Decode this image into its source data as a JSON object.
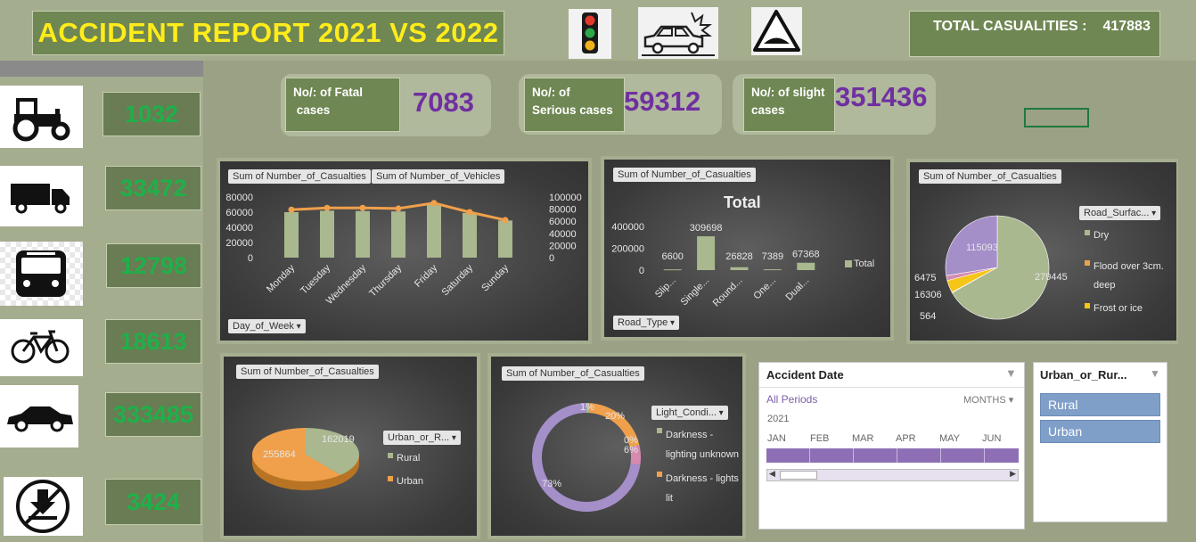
{
  "header": {
    "title": "ACCIDENT REPORT 2021 VS 2022",
    "total_label": "TOTAL CASUALITIES  :",
    "total_value": "417883",
    "icons": [
      "traffic-light-icon",
      "car-crash-icon",
      "speed-bump-sign-icon"
    ]
  },
  "vehicles": [
    {
      "icon": "tractor-icon",
      "value": "1032"
    },
    {
      "icon": "truck-icon",
      "value": "33472"
    },
    {
      "icon": "bus-icon",
      "value": "12798"
    },
    {
      "icon": "bicycle-icon",
      "value": "18613"
    },
    {
      "icon": "car-icon",
      "value": "333485"
    },
    {
      "icon": "no-unloading-sign-icon",
      "value": "3424"
    }
  ],
  "kpis": {
    "fatal": {
      "label_line1": "No/: of Fatal",
      "label_line2": " cases",
      "value": "7083"
    },
    "serious": {
      "label_line1": "No/: of",
      "label_line2": "Serious cases",
      "value": "59312"
    },
    "slight": {
      "label_line1": "No/: of slight",
      "label_line2": "cases",
      "value": "351436"
    }
  },
  "chart_data": [
    {
      "type": "bar",
      "field_buttons": [
        "Sum of Number_of_Casualties",
        "Sum of Number_of_Vehicles"
      ],
      "axis_button": "Day_of_Week",
      "categories": [
        "Monday",
        "Tuesday",
        "Wednesday",
        "Thursday",
        "Friday",
        "Saturday",
        "Sunday"
      ],
      "series": [
        {
          "name": "Sum of Number_of_Casualties",
          "kind": "bar",
          "axis": "left",
          "values": [
            60000,
            62000,
            61500,
            61000,
            70000,
            59000,
            49000
          ]
        },
        {
          "name": "Sum of Number_of_Vehicles",
          "kind": "line",
          "axis": "right",
          "values": [
            79000,
            82000,
            82000,
            81000,
            90000,
            75000,
            62000
          ]
        }
      ],
      "y_ticks_left": [
        "80000",
        "60000",
        "40000",
        "20000",
        "0"
      ],
      "y_ticks_right": [
        "100000",
        "80000",
        "60000",
        "40000",
        "20000",
        "0"
      ],
      "ylim": [
        0,
        80000
      ],
      "y2lim": [
        0,
        100000
      ],
      "colors": {
        "bar": "#a9b88f",
        "line": "#f0a04b"
      }
    },
    {
      "type": "bar",
      "field_button": "Sum of Number_of_Casualties",
      "axis_button": "Road_Type",
      "title": "Total",
      "categories": [
        "Slip...",
        "Single...",
        "Round...",
        "One...",
        "Dual..."
      ],
      "values": [
        6600,
        309698,
        26828,
        7389,
        67368
      ],
      "data_labels": [
        "6600",
        "309698",
        "26828",
        "7389",
        "67368"
      ],
      "y_ticks": [
        "400000",
        "200000",
        "0"
      ],
      "ylim": [
        0,
        400000
      ],
      "legend": "Total",
      "colors": {
        "bar": "#a9b88f"
      }
    },
    {
      "type": "pie",
      "field_button": "Sum of Number_of_Casualties",
      "legend_button": "Road_Surfac...",
      "values": [
        279445,
        564,
        16306,
        6475,
        115093
      ],
      "data_labels": [
        "279445",
        "564",
        "16306",
        "6475",
        "115093"
      ],
      "colors": [
        "#a9b88f",
        "#f0a04b",
        "#f5c518",
        "#d68ab0",
        "#a48fc9"
      ],
      "legend": [
        "Dry",
        "Flood over 3cm. deep",
        "Frost or ice"
      ],
      "legend_colors": [
        "#a9b88f",
        "#f0a04b",
        "#f5c518"
      ]
    },
    {
      "type": "pie",
      "field_button": "Sum of Number_of_Casualties",
      "legend_button": "Urban_or_R...",
      "values": [
        162019,
        255864
      ],
      "data_labels": [
        "162019",
        "255864"
      ],
      "legend": [
        "Rural",
        "Urban"
      ],
      "colors": [
        "#a9b88f",
        "#f0a04b"
      ]
    },
    {
      "type": "pie",
      "subtype": "doughnut",
      "field_button": "Sum of Number_of_Casualties",
      "legend_button": "Light_Condi...",
      "values": [
        1,
        20,
        0,
        6,
        73
      ],
      "data_labels": [
        "1%",
        "20%",
        "0%",
        "6%",
        "73%"
      ],
      "legend": [
        "Darkness - lighting unknown",
        "Darkness - lights lit"
      ],
      "legend_colors": [
        "#a9b88f",
        "#f0a04b"
      ],
      "colors": [
        "#a9b88f",
        "#f0a04b",
        "#f5c518",
        "#d68ab0",
        "#a48fc9"
      ]
    }
  ],
  "timeline": {
    "title": "Accident Date",
    "period": "All Periods",
    "level": "MONTHS",
    "year": "2021",
    "months": [
      "JAN",
      "FEB",
      "MAR",
      "APR",
      "MAY",
      "JUN"
    ]
  },
  "slicer": {
    "title": "Urban_or_Rur...",
    "items": [
      "Rural",
      "Urban"
    ]
  }
}
